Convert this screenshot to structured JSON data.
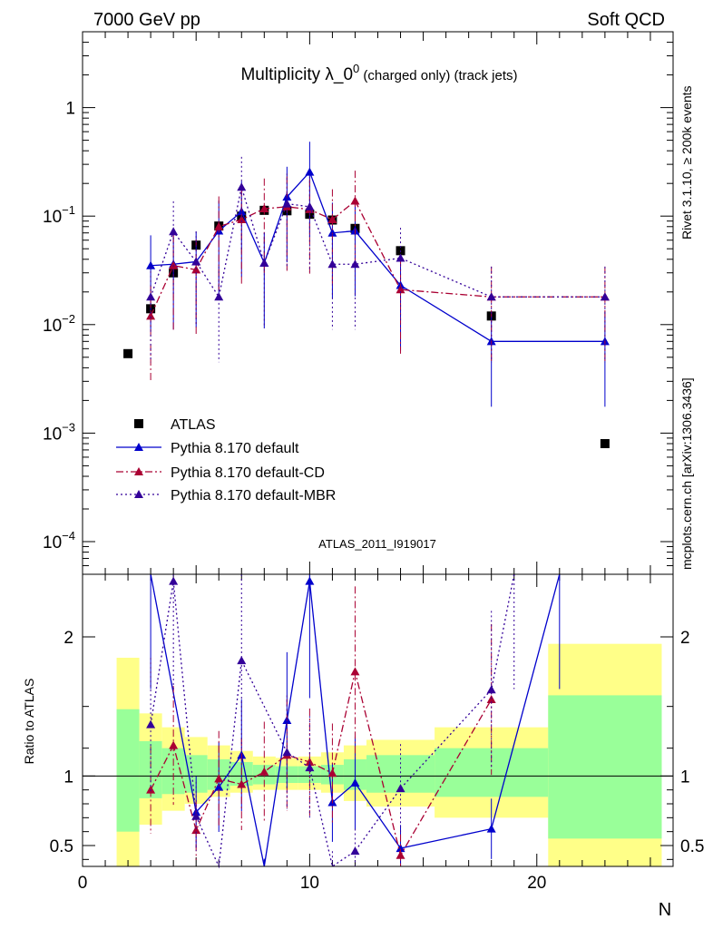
{
  "header": {
    "left": "7000 GeV pp",
    "right": "Soft QCD",
    "title_main": "Multiplicity λ_0",
    "title_sup": "0",
    "title_small": " (charged only) (track jets)"
  },
  "side_labels": {
    "rivet": "Rivet 3.1.10, ≥ 200k events",
    "mcplots": "mcplots.cern.ch [arXiv:1306.3436]"
  },
  "analysis_id": "ATLAS_2011_I919017",
  "chart_data": [
    {
      "type": "scatter",
      "panel": "main",
      "yscale": "log",
      "xlim": [
        0,
        26
      ],
      "ylim": [
        5e-05,
        5
      ],
      "ytick_labels": [
        "10^-4",
        "10^-3",
        "10^-2",
        "10^-1",
        "1"
      ],
      "xlabel": "N",
      "legend_position": "left",
      "series": [
        {
          "name": "ATLAS",
          "color": "#000000",
          "marker": "square",
          "x": [
            2,
            3,
            4,
            5,
            6,
            7,
            8,
            9,
            10,
            11,
            12,
            14,
            18,
            23
          ],
          "y": [
            0.0054,
            0.014,
            0.03,
            0.054,
            0.081,
            0.1,
            0.113,
            0.112,
            0.104,
            0.092,
            0.077,
            0.048,
            0.012,
            0.0008
          ]
        },
        {
          "name": "Pythia 8.170 default",
          "color": "#0000cc",
          "marker": "triangle",
          "line": "solid",
          "x": [
            3,
            4,
            5,
            6,
            7,
            8,
            9,
            10,
            11,
            12,
            14,
            18,
            23
          ],
          "y": [
            0.035,
            0.036,
            0.038,
            0.073,
            0.11,
            0.037,
            0.15,
            0.255,
            0.07,
            0.073,
            0.023,
            0.007,
            0.007
          ]
        },
        {
          "name": "Pythia 8.170 default-CD",
          "color": "#aa0033",
          "marker": "triangle",
          "line": "dashdot",
          "x": [
            3,
            4,
            5,
            6,
            7,
            8,
            9,
            10,
            11,
            12,
            14,
            18,
            23
          ],
          "y": [
            0.012,
            0.035,
            0.032,
            0.08,
            0.093,
            0.117,
            0.122,
            0.115,
            0.093,
            0.138,
            0.021,
            0.018,
            0.018
          ]
        },
        {
          "name": "Pythia 8.170 default-MBR",
          "color": "#330099",
          "marker": "triangle",
          "line": "dotted",
          "x": [
            3,
            4,
            5,
            6,
            7,
            8,
            9,
            10,
            11,
            12,
            14,
            18,
            23
          ],
          "y": [
            0.018,
            0.072,
            0.038,
            0.018,
            0.185,
            0.037,
            0.13,
            0.122,
            0.036,
            0.036,
            0.041,
            0.018,
            0.018
          ]
        }
      ]
    },
    {
      "type": "scatter",
      "panel": "ratio",
      "ylabel": "Ratio to ATLAS",
      "xlabel": "N",
      "xlim": [
        0,
        26
      ],
      "ylim": [
        0.35,
        2.45
      ],
      "xtick_labels": [
        "0",
        "10",
        "20"
      ],
      "ytick_labels": [
        "0.5",
        "1",
        "2"
      ],
      "reference_line": 1,
      "series": [
        {
          "name": "Pythia 8.170 default",
          "color": "#0000cc",
          "x": [
            3,
            5,
            6,
            7,
            8,
            9,
            10,
            11,
            12,
            14,
            18,
            21
          ],
          "y": [
            2.5,
            0.74,
            0.92,
            1.15,
            0.3,
            1.4,
            2.4,
            0.81,
            0.95,
            0.48,
            0.62,
            2.5
          ]
        },
        {
          "name": "Pythia 8.170 default-CD",
          "color": "#aa0033",
          "x": [
            3,
            4,
            5,
            6,
            7,
            8,
            9,
            10,
            11,
            12,
            14,
            18
          ],
          "y": [
            0.9,
            1.22,
            0.61,
            0.98,
            0.94,
            1.03,
            1.15,
            1.1,
            1.02,
            1.75,
            0.43,
            1.55
          ]
        },
        {
          "name": "Pythia 8.170 default-MBR",
          "color": "#330099",
          "x": [
            3,
            4,
            5,
            6,
            7,
            9,
            10,
            11,
            12,
            14,
            18,
            19
          ],
          "y": [
            1.37,
            2.4,
            0.71,
            0.3,
            1.83,
            1.17,
            1.06,
            0.34,
            0.46,
            0.91,
            1.62,
            2.5
          ]
        }
      ],
      "uncertainty_bands": {
        "edges": [
          1.5,
          2.5,
          3.5,
          4.5,
          5.5,
          6.5,
          7.5,
          8.5,
          9.5,
          10.5,
          11.5,
          12.5,
          15.5,
          20.5,
          25.5
        ],
        "inner_color": "#99ff99",
        "outer_color": "#ffff88",
        "inner_lo": [
          0.6,
          0.84,
          0.87,
          0.88,
          0.9,
          0.93,
          0.94,
          0.95,
          0.95,
          0.94,
          0.9,
          0.88,
          0.85,
          0.55
        ],
        "inner_hi": [
          1.48,
          1.25,
          1.2,
          1.15,
          1.12,
          1.1,
          1.08,
          1.07,
          1.07,
          1.08,
          1.12,
          1.15,
          1.2,
          1.58
        ],
        "outer_lo": [
          0.3,
          0.65,
          0.75,
          0.8,
          0.85,
          0.88,
          0.9,
          0.9,
          0.9,
          0.88,
          0.82,
          0.78,
          0.7,
          0.3
        ],
        "outer_hi": [
          1.85,
          1.45,
          1.35,
          1.28,
          1.22,
          1.18,
          1.14,
          1.13,
          1.14,
          1.17,
          1.22,
          1.26,
          1.35,
          1.95
        ]
      }
    }
  ]
}
